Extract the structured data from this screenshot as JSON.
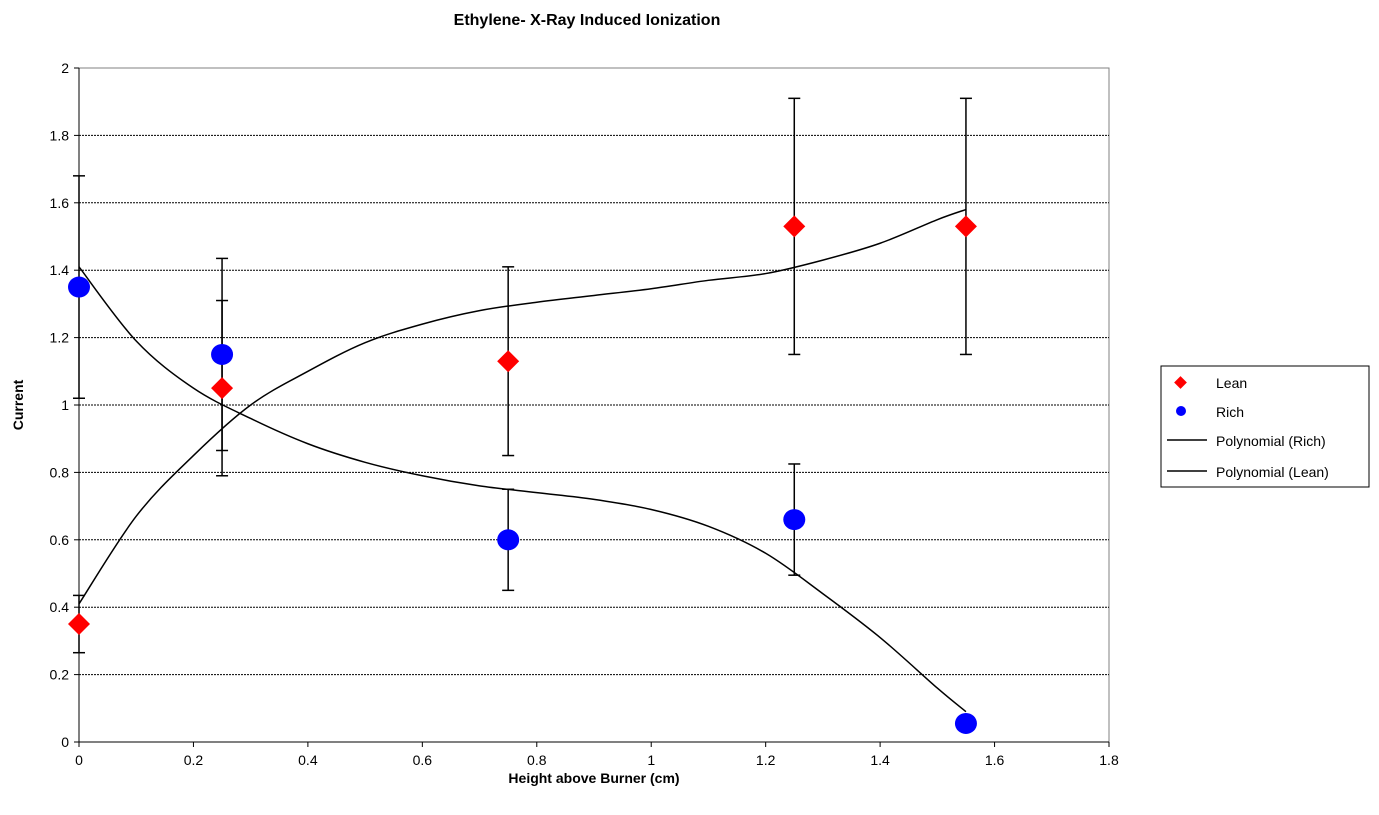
{
  "chart_data": {
    "type": "scatter",
    "title": "Ethylene- X-Ray Induced Ionization",
    "xlabel": "Height above Burner (cm)",
    "ylabel": "Current",
    "xlim": [
      0,
      1.8
    ],
    "ylim": [
      0,
      2
    ],
    "x_ticks": [
      "0",
      "0.2",
      "0.4",
      "0.6",
      "0.8",
      "1",
      "1.2",
      "1.4",
      "1.6",
      "1.8"
    ],
    "y_ticks": [
      "0",
      "0.2",
      "0.4",
      "0.6",
      "0.8",
      "1",
      "1.2",
      "1.4",
      "1.6",
      "1.8",
      "2"
    ],
    "grid": "horizontal major gridlines",
    "legend_position": "right",
    "series": [
      {
        "name": "Lean",
        "marker": "diamond",
        "color": "#ff0000",
        "points": [
          {
            "x": 0,
            "y": 0.35,
            "err": 0.085
          },
          {
            "x": 0.25,
            "y": 1.05,
            "err": 0.26
          },
          {
            "x": 0.75,
            "y": 1.13,
            "err": 0.28
          },
          {
            "x": 1.25,
            "y": 1.53,
            "err": 0.38
          },
          {
            "x": 1.55,
            "y": 1.53,
            "err": 0.38
          }
        ]
      },
      {
        "name": "Rich",
        "marker": "circle",
        "color": "#0000ff",
        "points": [
          {
            "x": 0,
            "y": 1.35,
            "err": 0.33
          },
          {
            "x": 0.25,
            "y": 1.15,
            "err": 0.285
          },
          {
            "x": 0.75,
            "y": 0.6,
            "err": 0.15
          },
          {
            "x": 1.25,
            "y": 0.66,
            "err": 0.165
          },
          {
            "x": 1.55,
            "y": 0.055,
            "err": 0.0
          }
        ]
      }
    ],
    "trendlines": [
      {
        "name": "Polynomial (Rich)",
        "color": "#000000",
        "points": [
          [
            0,
            1.41
          ],
          [
            0.1,
            1.19
          ],
          [
            0.2,
            1.05
          ],
          [
            0.3,
            0.96
          ],
          [
            0.4,
            0.885
          ],
          [
            0.5,
            0.83
          ],
          [
            0.6,
            0.79
          ],
          [
            0.7,
            0.76
          ],
          [
            0.8,
            0.74
          ],
          [
            0.9,
            0.72
          ],
          [
            1.0,
            0.69
          ],
          [
            1.1,
            0.64
          ],
          [
            1.2,
            0.56
          ],
          [
            1.3,
            0.44
          ],
          [
            1.4,
            0.31
          ],
          [
            1.5,
            0.16
          ],
          [
            1.55,
            0.09
          ]
        ]
      },
      {
        "name": "Polynomial (Lean)",
        "color": "#000000",
        "points": [
          [
            0,
            0.41
          ],
          [
            0.1,
            0.67
          ],
          [
            0.2,
            0.85
          ],
          [
            0.3,
            1.0
          ],
          [
            0.4,
            1.1
          ],
          [
            0.5,
            1.185
          ],
          [
            0.6,
            1.24
          ],
          [
            0.7,
            1.28
          ],
          [
            0.8,
            1.305
          ],
          [
            0.9,
            1.325
          ],
          [
            1.0,
            1.345
          ],
          [
            1.1,
            1.37
          ],
          [
            1.2,
            1.39
          ],
          [
            1.3,
            1.43
          ],
          [
            1.4,
            1.48
          ],
          [
            1.5,
            1.55
          ],
          [
            1.55,
            1.58
          ]
        ]
      }
    ],
    "legend": [
      "Lean",
      "Rich",
      "Polynomial (Rich)",
      "Polynomial (Lean)"
    ]
  }
}
